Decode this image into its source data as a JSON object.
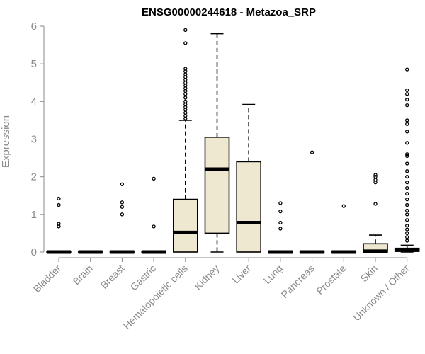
{
  "chart_data": {
    "type": "boxplot",
    "title": "ENSG00000244618 - Metazoa_SRP",
    "ylabel": "Expression",
    "xlabel": "",
    "ylim": [
      0,
      6
    ],
    "yticks": [
      "0",
      "1",
      "2",
      "3",
      "4",
      "5",
      "6"
    ],
    "box_color": "#efe8d0",
    "categories": [
      "Bladder",
      "Brain",
      "Breast",
      "Gastric",
      "Hematopoietic cells",
      "Kidney",
      "Liver",
      "Lung",
      "Pancreas",
      "Prostate",
      "Skin",
      "Unknown / Other"
    ],
    "boxes": [
      {
        "name": "Bladder",
        "q1": 0,
        "median": 0,
        "q3": 0,
        "whisker_low": 0,
        "whisker_high": 0,
        "outliers": [
          0.68,
          0.75,
          1.25,
          1.42
        ]
      },
      {
        "name": "Brain",
        "q1": 0,
        "median": 0,
        "q3": 0,
        "whisker_low": 0,
        "whisker_high": 0,
        "outliers": []
      },
      {
        "name": "Breast",
        "q1": 0,
        "median": 0,
        "q3": 0,
        "whisker_low": 0,
        "whisker_high": 0,
        "outliers": [
          1.0,
          1.2,
          1.32,
          1.8
        ]
      },
      {
        "name": "Gastric",
        "q1": 0,
        "median": 0,
        "q3": 0,
        "whisker_low": 0,
        "whisker_high": 0,
        "outliers": [
          0.68,
          1.95
        ]
      },
      {
        "name": "Hematopoietic cells",
        "q1": 0,
        "median": 0.52,
        "q3": 1.4,
        "whisker_low": 0,
        "whisker_high": 3.5,
        "outliers": [
          3.55,
          3.62,
          3.7,
          3.78,
          3.85,
          3.92,
          4.0,
          4.1,
          4.2,
          4.28,
          4.35,
          4.42,
          4.5,
          4.58,
          4.65,
          4.72,
          4.8,
          4.87,
          5.55,
          5.9
        ]
      },
      {
        "name": "Kidney",
        "q1": 0.5,
        "median": 2.2,
        "q3": 3.05,
        "whisker_low": 0,
        "whisker_high": 5.8,
        "outliers": []
      },
      {
        "name": "Liver",
        "q1": 0,
        "median": 0.78,
        "q3": 2.4,
        "whisker_low": 0,
        "whisker_high": 3.92,
        "outliers": []
      },
      {
        "name": "Lung",
        "q1": 0,
        "median": 0,
        "q3": 0,
        "whisker_low": 0,
        "whisker_high": 0,
        "outliers": [
          0.62,
          0.78,
          1.08,
          1.3
        ]
      },
      {
        "name": "Pancreas",
        "q1": 0,
        "median": 0,
        "q3": 0,
        "whisker_low": 0,
        "whisker_high": 0,
        "outliers": [
          2.65
        ]
      },
      {
        "name": "Prostate",
        "q1": 0,
        "median": 0,
        "q3": 0,
        "whisker_low": 0,
        "whisker_high": 0,
        "outliers": [
          1.22
        ]
      },
      {
        "name": "Skin",
        "q1": 0,
        "median": 0.02,
        "q3": 0.22,
        "whisker_low": 0,
        "whisker_high": 0.45,
        "outliers": [
          1.28,
          1.85,
          1.92,
          2.0,
          2.05
        ]
      },
      {
        "name": "Unknown / Other",
        "q1": 0.02,
        "median": 0.05,
        "q3": 0.1,
        "whisker_low": 0,
        "whisker_high": 0.18,
        "outliers": [
          0.3,
          0.4,
          0.5,
          0.6,
          0.7,
          0.85,
          1.0,
          1.1,
          1.25,
          1.4,
          1.55,
          1.7,
          1.85,
          2.0,
          2.15,
          2.35,
          2.55,
          2.6,
          2.9,
          3.2,
          3.4,
          3.5,
          3.9,
          4.05,
          4.2,
          4.3,
          4.85
        ]
      }
    ]
  }
}
